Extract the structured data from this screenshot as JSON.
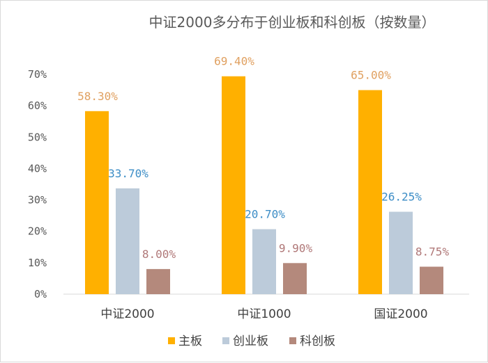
{
  "chart_data": {
    "type": "bar",
    "title": "中证2000多分布于创业板和科创板（按数量）",
    "categories": [
      "中证2000",
      "中证1000",
      "国证2000"
    ],
    "series": [
      {
        "name": "主板",
        "color": "#ffb000",
        "label_color": "#e0a060",
        "values": [
          58.3,
          69.4,
          65.0
        ],
        "labels": [
          "58.30%",
          "69.40%",
          "65.00%"
        ]
      },
      {
        "name": "创业板",
        "color": "#bccbda",
        "label_color": "#3c8dc6",
        "values": [
          33.7,
          20.7,
          26.25
        ],
        "labels": [
          "33.70%",
          "20.70%",
          "26.25%"
        ]
      },
      {
        "name": "科创板",
        "color": "#b4897c",
        "label_color": "#b07878",
        "values": [
          8.0,
          9.9,
          8.75
        ],
        "labels": [
          "8.00%",
          "9.90%",
          "8.75%"
        ]
      }
    ],
    "yticks": [
      0,
      10,
      20,
      30,
      40,
      50,
      60,
      70
    ],
    "ytick_labels": [
      "0%",
      "10%",
      "20%",
      "30%",
      "40%",
      "50%",
      "60%",
      "70%"
    ],
    "ylim": [
      0,
      70
    ],
    "grid": false,
    "legend_position": "bottom"
  }
}
